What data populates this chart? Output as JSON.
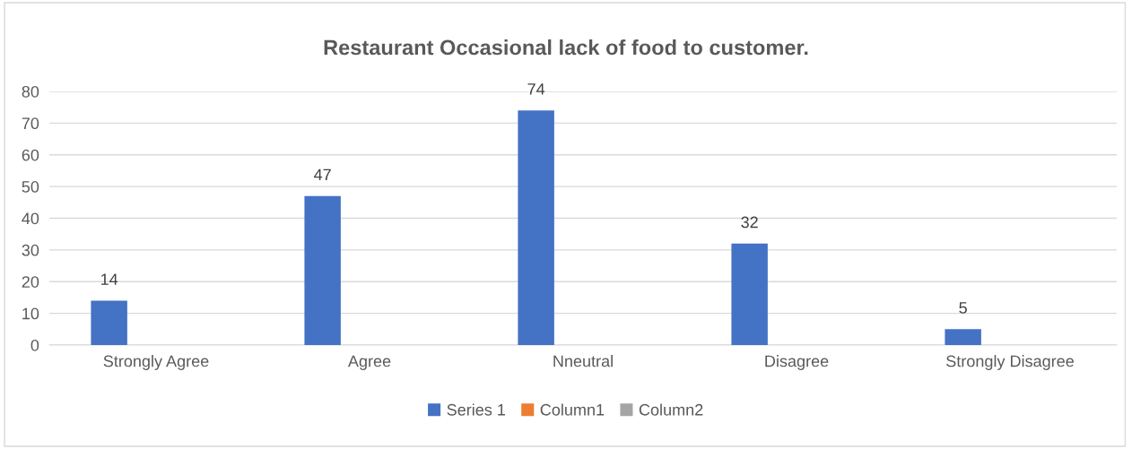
{
  "chart_data": {
    "type": "bar",
    "title": "Restaurant Occasional lack of food to customer.",
    "categories": [
      "Strongly Agree",
      "Agree",
      "Nneutral",
      "Disagree",
      "Strongly Disagree"
    ],
    "series": [
      {
        "name": "Series 1",
        "color": "#4472c4",
        "values": [
          14,
          47,
          74,
          32,
          5
        ]
      },
      {
        "name": "Column1",
        "color": "#ed7d31",
        "values": [
          null,
          null,
          null,
          null,
          null
        ]
      },
      {
        "name": "Column2",
        "color": "#a5a5a5",
        "values": [
          null,
          null,
          null,
          null,
          null
        ]
      }
    ],
    "ylim": [
      0,
      80
    ],
    "yticks": [
      0,
      10,
      20,
      30,
      40,
      50,
      60,
      70,
      80
    ],
    "grid": "y",
    "legend": "bottom",
    "data_labels": true
  }
}
